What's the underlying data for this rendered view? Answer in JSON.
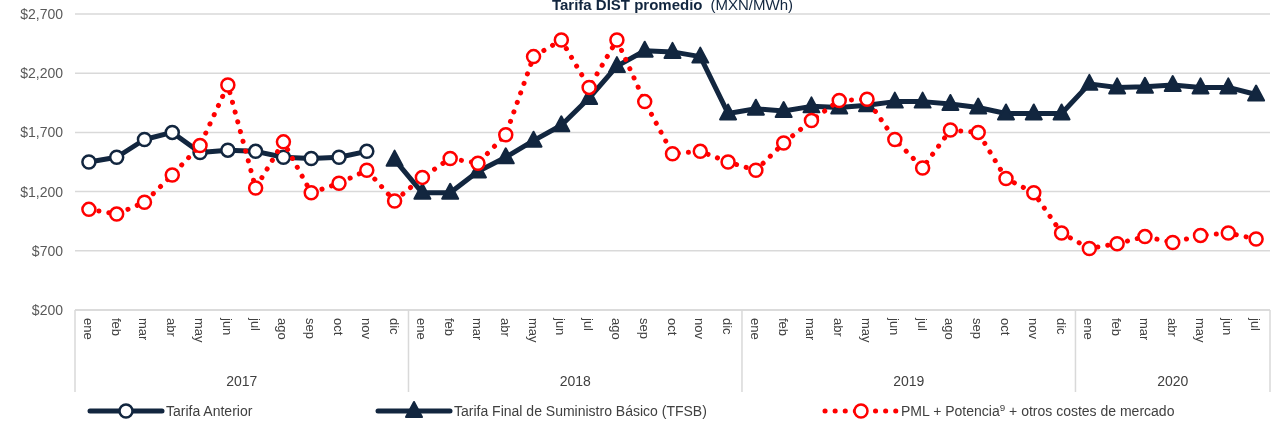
{
  "chart_data": {
    "type": "line",
    "title": "Tarifa DIST promedio",
    "subtitle": "(MXN/MWh)",
    "categories": [
      "ene",
      "feb",
      "mar",
      "abr",
      "may",
      "jun",
      "jul",
      "ago",
      "sep",
      "oct",
      "nov",
      "dic",
      "ene",
      "feb",
      "mar",
      "abr",
      "may",
      "jun",
      "jul",
      "ago",
      "sep",
      "oct",
      "nov",
      "dic",
      "ene",
      "feb",
      "mar",
      "abr",
      "may",
      "jun",
      "jul",
      "ago",
      "sep",
      "oct",
      "nov",
      "dic",
      "ene",
      "feb",
      "mar",
      "abr",
      "may",
      "jun",
      "jul"
    ],
    "annotations": [
      "2017",
      "2018",
      "2019",
      "2020"
    ],
    "ylim": [
      200,
      2700
    ],
    "yticks": [
      {
        "value": 200,
        "label": "$200"
      },
      {
        "value": 700,
        "label": "$700"
      },
      {
        "value": 1200,
        "label": "$1,200"
      },
      {
        "value": 1700,
        "label": "$1,700"
      },
      {
        "value": 2200,
        "label": "$2,200"
      },
      {
        "value": 2700,
        "label": "$2,700"
      }
    ],
    "grid": "y",
    "legend": "bottom",
    "series": [
      {
        "name": "Tarifa Anterior",
        "color": "#12263f",
        "marker": "circle",
        "line_style": "solid",
        "values": [
          1450,
          1490,
          1640,
          1700,
          1530,
          1550,
          1540,
          1490,
          1480,
          1490,
          1540,
          null,
          null,
          null,
          null,
          null,
          null,
          null,
          null,
          null,
          null,
          null,
          null,
          null,
          null,
          null,
          null,
          null,
          null,
          null,
          null,
          null,
          null,
          null,
          null,
          null,
          null,
          null,
          null,
          null,
          null,
          null,
          null
        ]
      },
      {
        "name": "Tarifa Final de Suministro Básico (TFSB)",
        "color": "#12263f",
        "marker": "triangle",
        "line_style": "solid",
        "values": [
          null,
          null,
          null,
          null,
          null,
          null,
          null,
          null,
          null,
          null,
          null,
          1470,
          1190,
          1190,
          1370,
          1490,
          1630,
          1760,
          1990,
          2260,
          2390,
          2380,
          2340,
          1860,
          1900,
          1880,
          1920,
          1910,
          1930,
          1960,
          1960,
          1940,
          1910,
          1860,
          1860,
          1860,
          2110,
          2080,
          2085,
          2100,
          2080,
          2080,
          2020
        ]
      },
      {
        "name": "PML + Potencia$^{9}$ + otros costes de mercado",
        "color": "#ff0000",
        "marker": "circle",
        "line_style": "dotted",
        "values": [
          1050,
          1010,
          1110,
          1340,
          1590,
          2100,
          1230,
          1620,
          1190,
          1270,
          1380,
          1120,
          1320,
          1480,
          1440,
          1680,
          2340,
          2480,
          2080,
          2480,
          1960,
          1520,
          1540,
          1450,
          1380,
          1610,
          1800,
          1970,
          1980,
          1640,
          1400,
          1720,
          1700,
          1310,
          1190,
          850,
          720,
          760,
          820,
          770,
          830,
          850,
          800
        ]
      }
    ]
  }
}
